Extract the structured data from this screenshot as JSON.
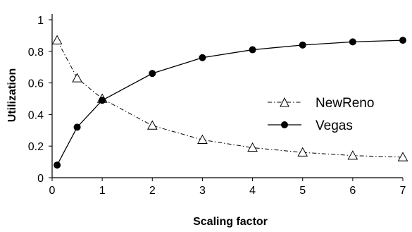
{
  "chart_data": {
    "type": "line",
    "title": "",
    "xlabel": "Scaling factor",
    "ylabel": "Utilization",
    "xlim": [
      0,
      7
    ],
    "ylim": [
      0,
      1
    ],
    "x_ticks": [
      0,
      1,
      2,
      3,
      4,
      5,
      6,
      7
    ],
    "y_ticks": [
      0,
      0.2,
      0.4,
      0.6,
      0.8,
      1
    ],
    "x_tick_labels": [
      "0",
      "1",
      "2",
      "3",
      "4",
      "5",
      "6",
      "7"
    ],
    "y_tick_labels": [
      "0",
      "0.2",
      "0.4",
      "0.6",
      "0.8",
      "1"
    ],
    "grid": false,
    "legend_position": "middle-right",
    "series": [
      {
        "name": "NewReno",
        "marker": "open-triangle",
        "line_style": "dash-dot",
        "color": "#000000",
        "x": [
          0.1,
          0.5,
          1,
          2,
          3,
          4,
          5,
          6,
          7
        ],
        "y": [
          0.87,
          0.63,
          0.5,
          0.33,
          0.24,
          0.19,
          0.16,
          0.14,
          0.13
        ]
      },
      {
        "name": "Vegas",
        "marker": "filled-circle",
        "line_style": "solid",
        "color": "#000000",
        "x": [
          0.1,
          0.5,
          1,
          2,
          3,
          4,
          5,
          6,
          7
        ],
        "y": [
          0.08,
          0.32,
          0.49,
          0.66,
          0.76,
          0.81,
          0.84,
          0.86,
          0.87
        ]
      }
    ]
  }
}
